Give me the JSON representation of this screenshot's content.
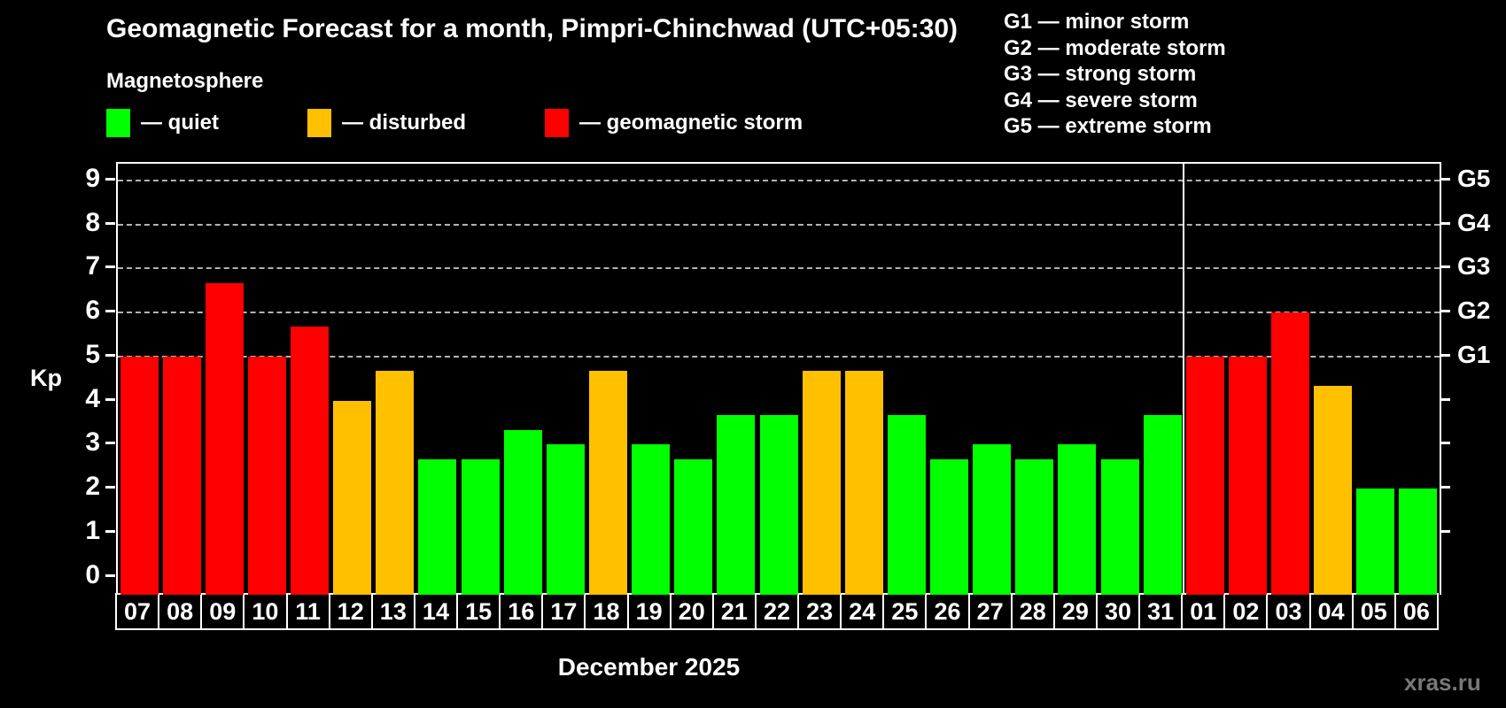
{
  "header": {
    "title": "Geomagnetic Forecast for a month, Pimpri-Chinchwad (UTC+05:30)",
    "subtitle": "Magnetosphere"
  },
  "legend": {
    "items": [
      {
        "key": "quiet",
        "label": "— quiet"
      },
      {
        "key": "disturbed",
        "label": "— disturbed"
      },
      {
        "key": "storm",
        "label": "— geomagnetic storm"
      }
    ]
  },
  "g_scale_legend": [
    "G1 — minor storm",
    "G2 — moderate storm",
    "G3 — strong storm",
    "G4 — severe storm",
    "G5 — extreme storm"
  ],
  "colors": {
    "quiet": "#00ff00",
    "disturbed": "#ffc000",
    "storm": "#ff0000",
    "background": "#000000",
    "grid": "#b3b3b3",
    "axis": "#ffffff",
    "watermark": "#787878"
  },
  "axis": {
    "y_label": "Kp",
    "y_ticks": [
      "0",
      "1",
      "2",
      "3",
      "4",
      "5",
      "6",
      "7",
      "8",
      "9"
    ],
    "right_labels": [
      {
        "kp": 5,
        "label": "G1"
      },
      {
        "kp": 6,
        "label": "G2"
      },
      {
        "kp": 7,
        "label": "G3"
      },
      {
        "kp": 8,
        "label": "G4"
      },
      {
        "kp": 9,
        "label": "G5"
      }
    ]
  },
  "footer": {
    "month_label": "December 2025",
    "watermark": "xras.ru"
  },
  "chart_data": {
    "type": "bar",
    "title": "Geomagnetic Forecast for a month, Pimpri-Chinchwad (UTC+05:30)",
    "xlabel": "December 2025",
    "ylabel": "Kp",
    "ylim": [
      0,
      9.6
    ],
    "grid_levels": [
      5,
      6,
      7,
      8,
      9
    ],
    "grid": "dashed, only at Kp 5-9 (G1-G5)",
    "legend_position": "top-left (quiet/disturbed/storm), top-right (G1-G5 meanings)",
    "month_divider_after_index": 24,
    "categories": [
      "07",
      "08",
      "09",
      "10",
      "11",
      "12",
      "13",
      "14",
      "15",
      "16",
      "17",
      "18",
      "19",
      "20",
      "21",
      "22",
      "23",
      "24",
      "25",
      "26",
      "27",
      "28",
      "29",
      "30",
      "31",
      "01",
      "02",
      "03",
      "04",
      "05",
      "06"
    ],
    "values": [
      5,
      5,
      6.67,
      5,
      5.67,
      4,
      4.67,
      2.67,
      2.67,
      3.33,
      3,
      4.67,
      3,
      2.67,
      3.67,
      3.67,
      4.67,
      4.67,
      3.67,
      2.67,
      3,
      2.67,
      3,
      2.67,
      3.67,
      5,
      5,
      6,
      4.33,
      2,
      2
    ],
    "statuses": [
      "storm",
      "storm",
      "storm",
      "storm",
      "storm",
      "disturbed",
      "disturbed",
      "quiet",
      "quiet",
      "quiet",
      "quiet",
      "disturbed",
      "quiet",
      "quiet",
      "quiet",
      "quiet",
      "disturbed",
      "disturbed",
      "quiet",
      "quiet",
      "quiet",
      "quiet",
      "quiet",
      "quiet",
      "quiet",
      "storm",
      "storm",
      "storm",
      "disturbed",
      "quiet",
      "quiet"
    ]
  }
}
